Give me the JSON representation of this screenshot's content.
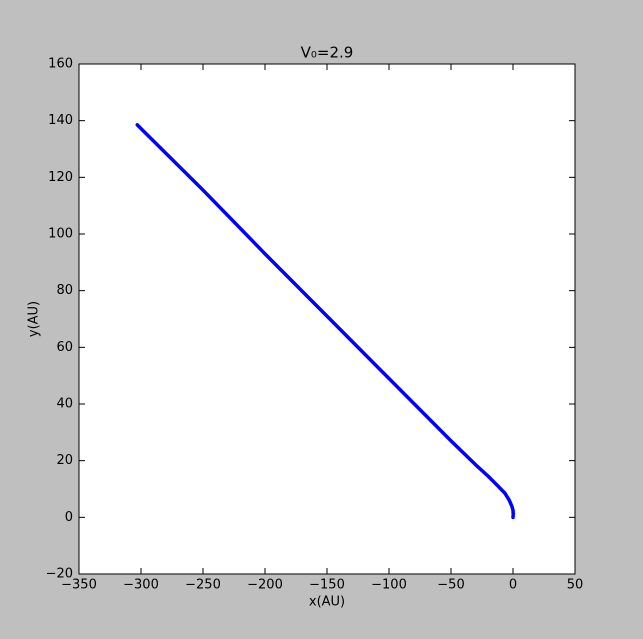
{
  "chart_data": {
    "type": "line",
    "title": "V₀=2.9",
    "x_label": "x(AU)",
    "y_label": "y(AU)",
    "x": [
      0,
      0.2,
      0,
      -1,
      -3,
      -6.5,
      -12,
      -20,
      -30,
      -50,
      -100,
      -150,
      -200,
      -250,
      -303
    ],
    "values": [
      0,
      1,
      2.5,
      4,
      6,
      8.5,
      11,
      14.5,
      18.5,
      27,
      49,
      71,
      93,
      115.5,
      138.5
    ],
    "color": "#0000ff",
    "xlim": [
      -350,
      50
    ],
    "xticks": [
      {
        "value": -350,
        "label": "−350"
      },
      {
        "value": -300,
        "label": "−300"
      },
      {
        "value": -250,
        "label": "−250"
      },
      {
        "value": -200,
        "label": "−200"
      },
      {
        "value": -150,
        "label": "−150"
      },
      {
        "value": -100,
        "label": "−100"
      },
      {
        "value": -50,
        "label": "−50"
      },
      0,
      50
    ],
    "ylim": [
      -20,
      160
    ],
    "yticks": [
      {
        "value": -20,
        "label": "−20"
      },
      0,
      20,
      40,
      60,
      80,
      100,
      120,
      140,
      160
    ],
    "grid": false
  }
}
